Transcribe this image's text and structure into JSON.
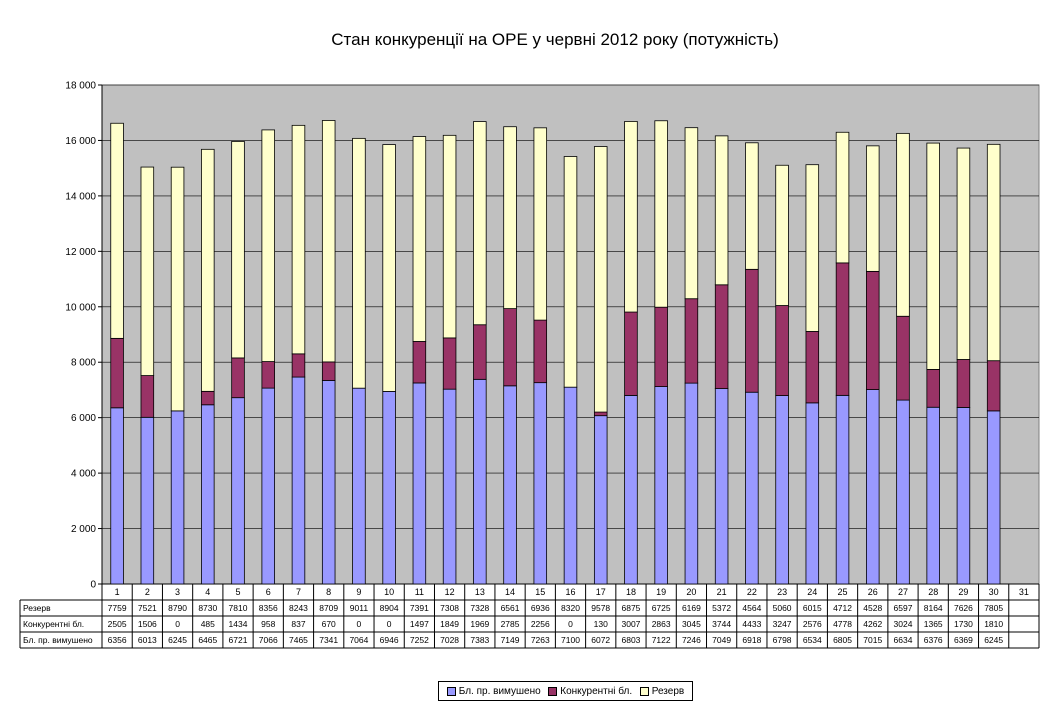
{
  "chart_data": {
    "type": "bar",
    "stacked": true,
    "title": "Стан конкуренції на ОРЕ  у червні 2012 року (потужність)",
    "xlabel": "",
    "ylabel": "",
    "ylim": [
      0,
      18000
    ],
    "y_ticks": [
      "0",
      "2 000",
      "4 000",
      "6 000",
      "8 000",
      "10 000",
      "12 000",
      "14 000",
      "16 000",
      "18 000"
    ],
    "grid": true,
    "legend_position": "bottom",
    "categories": [
      "1",
      "2",
      "3",
      "4",
      "5",
      "6",
      "7",
      "8",
      "9",
      "10",
      "11",
      "12",
      "13",
      "14",
      "15",
      "16",
      "17",
      "18",
      "19",
      "20",
      "21",
      "22",
      "23",
      "24",
      "25",
      "26",
      "27",
      "28",
      "29",
      "30",
      "31"
    ],
    "series": [
      {
        "name": "Бл. пр. вимушено",
        "color": "#9999ff",
        "values": [
          6356,
          6013,
          6245,
          6465,
          6721,
          7066,
          7465,
          7341,
          7064,
          6946,
          7252,
          7028,
          7383,
          7149,
          7263,
          7100,
          6072,
          6803,
          7122,
          7246,
          7049,
          6918,
          6798,
          6534,
          6805,
          7015,
          6634,
          6376,
          6369,
          6245,
          null
        ]
      },
      {
        "name": "Конкурентні бл.",
        "color": "#993366",
        "values": [
          2505,
          1506,
          0,
          485,
          1434,
          958,
          837,
          670,
          0,
          0,
          1497,
          1849,
          1969,
          2785,
          2256,
          0,
          130,
          3007,
          2863,
          3045,
          3744,
          4433,
          3247,
          2576,
          4778,
          4262,
          3024,
          1365,
          1730,
          1810,
          null
        ]
      },
      {
        "name": "Резерв",
        "color": "#ffffcc",
        "values": [
          7759,
          7521,
          8790,
          8730,
          7810,
          8356,
          8243,
          8709,
          9011,
          8904,
          7391,
          7308,
          7328,
          6561,
          6936,
          8320,
          9578,
          6875,
          6725,
          6169,
          5372,
          4564,
          5060,
          6015,
          4712,
          4528,
          6597,
          8164,
          7626,
          7805,
          null
        ]
      }
    ],
    "table_rows": [
      {
        "label": "Резерв",
        "series_index": 2
      },
      {
        "label": "Конкурентні бл.",
        "series_index": 1
      },
      {
        "label": "Бл. пр. вимушено",
        "series_index": 0
      }
    ],
    "plot_background": "#c0c0c0"
  }
}
